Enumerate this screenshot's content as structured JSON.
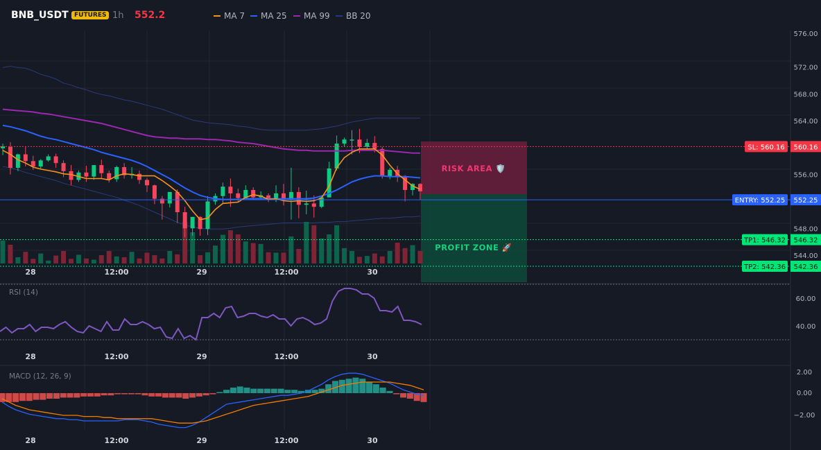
{
  "header": {
    "symbol": "BNB_USDT",
    "badge": "FUTURES",
    "timeframe": "1h",
    "price": "552.2"
  },
  "legend": [
    {
      "label": "MA 7",
      "color": "#f7931a"
    },
    {
      "label": "MA 25",
      "color": "#2962ff"
    },
    {
      "label": "MA 99",
      "color": "#9c27b0"
    },
    {
      "label": "BB 20",
      "color": "#1e3a8a"
    }
  ],
  "colors": {
    "up": "#0ecb81",
    "down": "#f6465d",
    "bg": "#161a25"
  },
  "price_axis": {
    "ticks": [
      "572.00",
      "568.00",
      "564.00",
      "556.00",
      "548.00",
      "544.00"
    ],
    "partial_top_tick": "576.00"
  },
  "rsi_axis": {
    "ticks": [
      "60.00",
      "40.00"
    ]
  },
  "macd_axis": {
    "ticks": [
      "2.00",
      "0.00",
      "−2.00"
    ]
  },
  "time_axis": {
    "labels": [
      "28",
      "12:00",
      "29",
      "12:00",
      "30"
    ]
  },
  "levels": {
    "sl": {
      "tag": "SL: 560.16",
      "axis": "560.16",
      "price": 560.16,
      "color": "#f23645"
    },
    "entry": {
      "tag": "ENTRY: 552.25",
      "axis": "552.25",
      "price": 552.25,
      "color": "#2962ff"
    },
    "tp1": {
      "tag": "TP1: 546.32",
      "axis": "546.32",
      "price": 546.32,
      "color": "#00e676"
    },
    "tp2": {
      "tag": "TP2: 542.36",
      "axis": "542.36",
      "price": 542.36,
      "color": "#00e676"
    }
  },
  "zones": {
    "risk": "RISK AREA 🛡️",
    "profit": "PROFIT ZONE 🚀"
  },
  "panels": {
    "rsi": "RSI (14)",
    "macd": "MACD (12, 26, 9)"
  },
  "chart_data": [
    {
      "type": "candlestick",
      "y_range": [
        542,
        577
      ],
      "ma7": [
        559.6,
        559.0,
        558.2,
        557.7,
        557.1,
        556.8,
        556.6,
        556.4,
        556.1,
        556.0,
        555.7,
        555.4,
        555.4,
        555.4,
        555.2,
        555.8,
        556.1,
        556.0,
        555.8,
        555.8,
        555.8,
        555.1,
        554.3,
        553.4,
        552.1,
        550.6,
        549.3,
        549.5,
        550.8,
        551.7,
        551.8,
        551.9,
        552.6,
        553.0,
        552.8,
        552.3,
        552.4,
        552.1,
        552.0,
        552.1,
        552.0,
        552.1,
        552.5,
        554.3,
        557.0,
        558.5,
        559.3,
        559.8,
        559.8,
        559.8,
        558.9,
        557.4,
        556.1,
        555.2,
        554.3,
        553.8
      ],
      "ma25": [
        563.3,
        563.1,
        562.8,
        562.5,
        562.1,
        561.7,
        561.4,
        561.2,
        560.9,
        560.6,
        560.3,
        560.0,
        559.7,
        559.3,
        559.0,
        558.7,
        558.4,
        558.1,
        557.7,
        557.2,
        556.6,
        556.0,
        555.4,
        554.7,
        554.0,
        553.4,
        552.9,
        552.6,
        552.4,
        552.3,
        552.3,
        552.3,
        552.4,
        552.4,
        552.4,
        552.4,
        552.4,
        552.4,
        552.4,
        552.4,
        552.4,
        552.5,
        552.8,
        553.2,
        553.7,
        554.3,
        554.9,
        555.3,
        555.6,
        555.8,
        555.8,
        555.7,
        555.7,
        555.7,
        555.6,
        555.5
      ],
      "ma99": [
        565.7,
        565.6,
        565.5,
        565.4,
        565.3,
        565.1,
        565.0,
        564.8,
        564.6,
        564.4,
        564.2,
        564.0,
        563.8,
        563.6,
        563.3,
        563.0,
        562.7,
        562.4,
        562.1,
        561.8,
        561.6,
        561.5,
        561.4,
        561.4,
        561.3,
        561.3,
        561.3,
        561.2,
        561.2,
        561.1,
        561.0,
        560.8,
        560.7,
        560.6,
        560.4,
        560.2,
        560.0,
        559.8,
        559.7,
        559.6,
        559.6,
        559.5,
        559.5,
        559.5,
        559.5,
        559.5,
        559.6,
        559.6,
        559.6,
        559.6,
        559.6,
        559.5,
        559.4,
        559.3,
        559.2,
        559.2
      ],
      "bb_upper": [
        571.9,
        572.1,
        571.9,
        571.8,
        571.4,
        570.9,
        570.6,
        570.2,
        569.6,
        569.3,
        568.9,
        568.6,
        568.2,
        567.9,
        567.7,
        567.4,
        567.1,
        566.9,
        566.6,
        566.3,
        566.0,
        565.7,
        565.3,
        564.9,
        564.5,
        564.1,
        563.9,
        563.7,
        563.6,
        563.5,
        563.4,
        563.2,
        563.1,
        562.9,
        562.7,
        562.6,
        562.6,
        562.6,
        562.6,
        562.6,
        562.6,
        562.7,
        562.8,
        563.0,
        563.2,
        563.5,
        563.8,
        564.0,
        564.2,
        564.4,
        564.4,
        564.4,
        564.4,
        564.4,
        564.4,
        564.4
      ],
      "bb_lower": [
        557.2,
        557.0,
        556.7,
        556.3,
        556.0,
        555.7,
        555.4,
        555.1,
        554.7,
        554.4,
        554.1,
        553.8,
        553.5,
        553.2,
        552.9,
        552.6,
        552.2,
        551.8,
        551.4,
        550.9,
        550.4,
        549.9,
        549.4,
        548.9,
        548.5,
        548.2,
        548.0,
        547.9,
        547.9,
        547.9,
        548.0,
        548.2,
        548.3,
        548.4,
        548.5,
        548.6,
        548.7,
        548.8,
        548.8,
        548.8,
        548.8,
        548.8,
        548.9,
        548.9,
        549.0,
        549.0,
        549.1,
        549.2,
        549.3,
        549.4,
        549.5,
        549.5,
        549.6,
        549.7,
        549.7,
        549.8
      ],
      "candles": [
        [
          559.9,
          560.6,
          560.2,
          558.9
        ],
        [
          560.1,
          560.8,
          557.0,
          556.0
        ],
        [
          557.0,
          559.1,
          559.0,
          556.5
        ],
        [
          559.0,
          560.1,
          558.0,
          557.2
        ],
        [
          558.0,
          558.8,
          557.2,
          556.7
        ],
        [
          557.2,
          558.3,
          558.1,
          556.9
        ],
        [
          558.1,
          559.0,
          558.7,
          557.9
        ],
        [
          558.7,
          559.1,
          557.7,
          557.0
        ],
        [
          557.7,
          558.1,
          556.5,
          555.6
        ],
        [
          556.5,
          557.4,
          555.2,
          554.4
        ],
        [
          555.2,
          556.6,
          556.3,
          554.9
        ],
        [
          556.3,
          557.3,
          555.7,
          554.9
        ],
        [
          555.7,
          557.4,
          557.4,
          555.2
        ],
        [
          557.4,
          558.2,
          556.2,
          555.4
        ],
        [
          556.2,
          556.6,
          555.3,
          554.8
        ],
        [
          555.3,
          557.3,
          557.1,
          554.9
        ],
        [
          557.1,
          557.7,
          555.9,
          555.4
        ],
        [
          555.9,
          557.1,
          556.1,
          555.4
        ],
        [
          556.1,
          556.6,
          555.2,
          554.6
        ],
        [
          555.2,
          555.5,
          554.4,
          553.4
        ],
        [
          554.4,
          554.5,
          552.4,
          551.6
        ],
        [
          552.4,
          552.8,
          551.7,
          549.3
        ],
        [
          551.7,
          553.4,
          553.4,
          551.1
        ],
        [
          553.4,
          553.8,
          550.4,
          548.8
        ],
        [
          550.4,
          551.2,
          548.0,
          546.7
        ],
        [
          548.0,
          549.7,
          549.7,
          546.9
        ],
        [
          549.7,
          549.8,
          547.9,
          546.9
        ],
        [
          547.9,
          552.8,
          552.0,
          547.0
        ],
        [
          552.0,
          553.2,
          552.8,
          551.5
        ],
        [
          552.8,
          554.8,
          554.2,
          551.6
        ],
        [
          554.2,
          555.4,
          553.2,
          551.2
        ],
        [
          553.2,
          553.9,
          552.5,
          551.9
        ],
        [
          552.5,
          554.4,
          553.7,
          552.3
        ],
        [
          553.7,
          554.1,
          552.6,
          552.2
        ],
        [
          552.6,
          553.5,
          552.9,
          552.2
        ],
        [
          552.9,
          553.2,
          552.3,
          551.9
        ],
        [
          552.3,
          554.4,
          553.2,
          551.9
        ],
        [
          553.2,
          554.6,
          552.2,
          551.4
        ],
        [
          552.2,
          557.0,
          553.4,
          549.3
        ],
        [
          553.4,
          554.1,
          551.5,
          549.5
        ],
        [
          551.5,
          553.6,
          551.7,
          550.1
        ],
        [
          551.7,
          552.9,
          551.2,
          549.6
        ],
        [
          551.2,
          552.9,
          552.6,
          551.0
        ],
        [
          552.6,
          557.9,
          556.9,
          552.6
        ],
        [
          556.9,
          561.8,
          560.6,
          556.6
        ],
        [
          560.6,
          561.5,
          561.2,
          560.1
        ],
        [
          561.2,
          562.6,
          561.2,
          559.0
        ],
        [
          561.2,
          562.8,
          560.1,
          559.2
        ],
        [
          560.1,
          561.3,
          560.7,
          559.7
        ],
        [
          560.7,
          561.7,
          559.8,
          559.3
        ],
        [
          559.8,
          560.1,
          555.7,
          555.4
        ],
        [
          555.7,
          557.0,
          556.7,
          555.3
        ],
        [
          556.7,
          557.3,
          555.6,
          554.9
        ],
        [
          555.6,
          555.9,
          553.7,
          552.0
        ],
        [
          553.7,
          554.7,
          554.6,
          552.9
        ],
        [
          554.6,
          554.7,
          553.5,
          552.2
        ]
      ],
      "volume": [
        0.55,
        0.45,
        0.15,
        0.28,
        0.11,
        0.24,
        0.07,
        0.19,
        0.3,
        0.11,
        0.21,
        0.12,
        0.09,
        0.2,
        0.3,
        0.17,
        0.15,
        0.28,
        0.12,
        0.26,
        0.2,
        0.12,
        0.3,
        0.22,
        1.0,
        0.75,
        0.2,
        0.27,
        0.43,
        0.69,
        0.8,
        0.7,
        0.53,
        0.49,
        0.47,
        0.27,
        0.26,
        0.26,
        0.65,
        0.35,
        1.0,
        0.92,
        0.6,
        0.7,
        0.92,
        0.37,
        0.3,
        0.16,
        0.18,
        0.24,
        0.17,
        0.3,
        0.5,
        0.37,
        0.44,
        0.3
      ]
    },
    {
      "type": "line",
      "name": "RSI (14)",
      "y_range": [
        20,
        70
      ],
      "values": [
        36,
        39,
        35,
        38,
        38,
        41,
        36,
        39,
        39,
        38,
        41,
        43,
        39,
        36,
        35,
        40,
        38,
        36,
        43,
        37,
        37,
        45,
        41,
        41,
        43,
        41,
        38,
        39,
        32,
        31,
        38,
        31,
        33,
        30,
        46,
        46,
        49,
        46,
        53,
        54,
        46,
        47,
        49,
        49,
        47,
        46,
        48,
        45,
        45,
        40,
        45,
        46,
        44,
        41,
        42,
        45,
        58,
        65,
        67,
        67,
        66,
        63,
        63,
        60,
        51,
        51,
        50,
        54,
        44,
        44,
        43,
        41
      ]
    },
    {
      "type": "bar+line",
      "name": "MACD (12, 26, 9)",
      "y_range": [
        -3.5,
        2.7
      ],
      "histogram": [
        -0.8,
        -0.8,
        -0.8,
        -0.7,
        -0.7,
        -0.6,
        -0.6,
        -0.5,
        -0.5,
        -0.4,
        -0.4,
        -0.4,
        -0.3,
        -0.3,
        -0.3,
        -0.2,
        -0.2,
        -0.1,
        -0.1,
        -0.1,
        -0.1,
        -0.2,
        -0.3,
        -0.3,
        -0.4,
        -0.4,
        -0.4,
        -0.5,
        -0.4,
        -0.3,
        -0.2,
        -0.1,
        0.1,
        0.3,
        0.5,
        0.6,
        0.5,
        0.4,
        0.4,
        0.4,
        0.4,
        0.4,
        0.3,
        0.3,
        0.2,
        0.3,
        0.3,
        0.4,
        0.8,
        1.1,
        1.2,
        1.3,
        1.4,
        1.3,
        1.0,
        0.8,
        0.5,
        0.2,
        -0.1,
        -0.4,
        -0.5,
        -0.7,
        -0.8
      ],
      "macd": [
        -0.8,
        -1.2,
        -1.5,
        -1.7,
        -1.9,
        -2.0,
        -2.1,
        -2.2,
        -2.3,
        -2.3,
        -2.4,
        -2.4,
        -2.5,
        -2.5,
        -2.5,
        -2.5,
        -2.5,
        -2.5,
        -2.4,
        -2.4,
        -2.4,
        -2.5,
        -2.6,
        -2.8,
        -2.9,
        -3.0,
        -3.1,
        -3.1,
        -2.9,
        -2.6,
        -2.2,
        -1.8,
        -1.4,
        -1.0,
        -0.9,
        -0.8,
        -0.7,
        -0.6,
        -0.5,
        -0.4,
        -0.3,
        -0.2,
        -0.2,
        -0.1,
        0.0,
        0.2,
        0.5,
        0.8,
        1.2,
        1.5,
        1.7,
        1.8,
        1.8,
        1.7,
        1.5,
        1.3,
        1.1,
        0.9,
        0.6,
        0.3,
        0.1,
        -0.1,
        -0.2
      ],
      "signal": [
        -0.5,
        -0.8,
        -1.1,
        -1.3,
        -1.5,
        -1.6,
        -1.7,
        -1.8,
        -1.9,
        -2.0,
        -2.0,
        -2.0,
        -2.1,
        -2.1,
        -2.1,
        -2.2,
        -2.2,
        -2.3,
        -2.3,
        -2.3,
        -2.3,
        -2.3,
        -2.3,
        -2.4,
        -2.5,
        -2.6,
        -2.7,
        -2.7,
        -2.7,
        -2.6,
        -2.5,
        -2.3,
        -2.1,
        -1.9,
        -1.7,
        -1.5,
        -1.3,
        -1.1,
        -1.0,
        -0.9,
        -0.8,
        -0.7,
        -0.6,
        -0.5,
        -0.4,
        -0.3,
        -0.1,
        0.1,
        0.3,
        0.5,
        0.7,
        0.8,
        0.9,
        1.0,
        1.0,
        1.0,
        1.0,
        1.0,
        0.9,
        0.8,
        0.7,
        0.5,
        0.3
      ]
    }
  ]
}
